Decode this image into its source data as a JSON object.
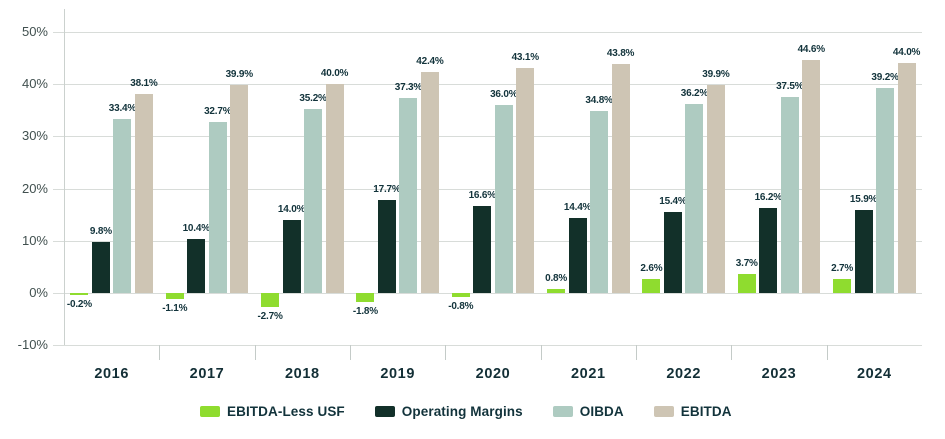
{
  "chart_data": {
    "type": "bar",
    "title": "",
    "xlabel": "",
    "ylabel": "",
    "categories": [
      "2016",
      "2017",
      "2018",
      "2019",
      "2020",
      "2021",
      "2022",
      "2023",
      "2024"
    ],
    "series": [
      {
        "name": "EBITDA-Less USF",
        "color": "#8FDC2F",
        "values": [
          -0.2,
          -1.1,
          -2.7,
          -1.8,
          -0.8,
          0.8,
          2.6,
          3.7,
          2.7
        ],
        "labels": [
          "-0.2%",
          "-1.1%",
          "-2.7%",
          "-1.8%",
          "-0.8%",
          "0.8%",
          "2.6%",
          "3.7%",
          "2.7%"
        ]
      },
      {
        "name": "Operating Margins",
        "color": "#123029",
        "values": [
          9.8,
          10.4,
          14.0,
          17.7,
          16.6,
          14.4,
          15.4,
          16.2,
          15.9
        ],
        "labels": [
          "9.8%",
          "10.4%",
          "14.0%",
          "17.7%",
          "16.6%",
          "14.4%",
          "15.4%",
          "16.2%",
          "15.9%"
        ]
      },
      {
        "name": "OIBDA",
        "color": "#AECBC1",
        "values": [
          33.4,
          32.7,
          35.2,
          37.3,
          36.0,
          34.8,
          36.2,
          37.5,
          39.2
        ],
        "labels": [
          "33.4%",
          "32.7%",
          "35.2%",
          "37.3%",
          "36.0%",
          "34.8%",
          "36.2%",
          "37.5%",
          "39.2%"
        ]
      },
      {
        "name": "EBITDA",
        "color": "#CEC5B4",
        "values": [
          38.1,
          39.9,
          40.0,
          42.4,
          43.1,
          43.8,
          39.9,
          44.6,
          44.0
        ],
        "labels": [
          "38.1%",
          "39.9%",
          "40.0%",
          "42.4%",
          "43.1%",
          "43.8%",
          "39.9%",
          "44.6%",
          "44.0%"
        ]
      }
    ],
    "y_ticks": [
      {
        "value": 50,
        "label": "50%"
      },
      {
        "value": 40,
        "label": "40%"
      },
      {
        "value": 30,
        "label": "30%"
      },
      {
        "value": 20,
        "label": "20%"
      },
      {
        "value": 10,
        "label": "10%"
      },
      {
        "value": 0,
        "label": "0%"
      },
      {
        "value": -10,
        "label": "-10%"
      }
    ],
    "ylim": [
      -10,
      50
    ],
    "grid": "horizontal",
    "legend_position": "bottom",
    "value_label_format": "one-decimal-percent"
  },
  "colors": {
    "background": "#FFFFFF",
    "gridline": "#D8DCD9",
    "axis_line": "#CBD1CE",
    "tick_mark": "#C4CBC8",
    "value_label_text": "#12333B",
    "axis_label_text": "#41504F",
    "year_label_text": "#132F36",
    "legend_text": "#12333B"
  }
}
